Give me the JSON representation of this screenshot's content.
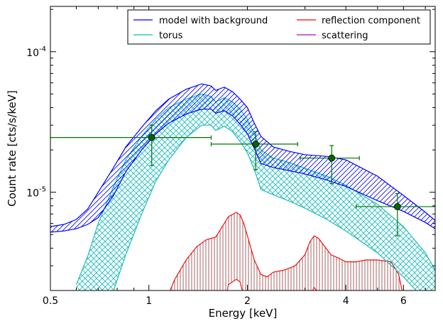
{
  "chart_data": {
    "type": "line",
    "xlabel": "Energy [keV]",
    "ylabel": "Count rate [cts/s/keV]",
    "xscale": "log",
    "yscale": "log",
    "xlim": [
      0.5,
      7.5
    ],
    "ylim": [
      2e-06,
      0.00021
    ],
    "xticks": [
      {
        "value": 0.5,
        "label": "0.5"
      },
      {
        "value": 1,
        "label": "1"
      },
      {
        "value": 2,
        "label": "2"
      },
      {
        "value": 4,
        "label": "4"
      },
      {
        "value": 6,
        "label": "6"
      }
    ],
    "yticks": [
      {
        "value": 1e-05,
        "base": "10",
        "exp": "-5"
      },
      {
        "value": 0.0001,
        "base": "10",
        "exp": "-4"
      }
    ],
    "legend": {
      "placement": "top-right",
      "entries": [
        {
          "label": "model with background",
          "color": "#0000ff"
        },
        {
          "label": "reflection component",
          "color": "#ff0000"
        },
        {
          "label": "torus",
          "color": "#00bfbf"
        },
        {
          "label": "scattering",
          "color": "#bf00bf"
        }
      ]
    },
    "colors": {
      "model": "#0000ff",
      "torus": "#1fbcbc",
      "reflection": "#ee1111",
      "reflection_fill": "#a05050",
      "data": "#007700",
      "data_marker": "#006600"
    },
    "series": [
      {
        "name": "model with background",
        "x": [
          0.5,
          0.55,
          0.6,
          0.65,
          0.7,
          0.78,
          0.85,
          0.95,
          1.05,
          1.15,
          1.3,
          1.45,
          1.55,
          1.6,
          1.7,
          1.8,
          1.9,
          2.0,
          2.1,
          2.2,
          2.4,
          2.7,
          3.0,
          3.5,
          4.0,
          5.0,
          6.0,
          7.0,
          7.5
        ],
        "upper": [
          5.7e-06,
          5.9e-06,
          6.4e-06,
          7.6e-06,
          1e-05,
          1.5e-05,
          2.1e-05,
          2.9e-05,
          3.8e-05,
          4.6e-05,
          5.4e-05,
          5.9e-05,
          5.7e-05,
          5.3e-05,
          5.6e-05,
          5.2e-05,
          4.6e-05,
          4e-05,
          3.1e-05,
          2.5e-05,
          2.1e-05,
          1.95e-05,
          1.85e-05,
          1.8e-05,
          1.7e-05,
          1.3e-05,
          9.5e-06,
          7.2e-06,
          6.3e-06
        ],
        "lower": [
          5.2e-06,
          5.3e-06,
          5.5e-06,
          5.9e-06,
          6.6e-06,
          9.5e-06,
          1.4e-05,
          2e-05,
          2.6e-05,
          3.1e-05,
          3.6e-05,
          3.9e-05,
          3.9e-05,
          3.65e-05,
          3.8e-05,
          3.5e-05,
          3.05e-05,
          2.6e-05,
          2.05e-05,
          1.6e-05,
          1.5e-05,
          1.42e-05,
          1.35e-05,
          1.22e-05,
          1.1e-05,
          8.7e-06,
          7.3e-06,
          6.1e-06,
          5.5e-06
        ]
      },
      {
        "name": "torus",
        "x": [
          0.6,
          0.65,
          0.7,
          0.78,
          0.85,
          0.95,
          1.05,
          1.15,
          1.3,
          1.45,
          1.55,
          1.6,
          1.7,
          1.8,
          1.9,
          2.0,
          2.1,
          2.2,
          2.4,
          2.7,
          3.0,
          3.5,
          4.0,
          5.0,
          6.0,
          7.0,
          7.5
        ],
        "upper": [
          2.2e-06,
          3.5e-06,
          6e-06,
          1.1e-05,
          1.7e-05,
          2.5e-05,
          3.3e-05,
          4e-05,
          4.6e-05,
          5e-05,
          4.8e-05,
          4.4e-05,
          4.7e-05,
          4.4e-05,
          3.9e-05,
          3.3e-05,
          2.6e-05,
          2e-05,
          1.75e-05,
          1.62e-05,
          1.48e-05,
          1.3e-05,
          1.12e-05,
          8.2e-06,
          5.7e-06,
          3.7e-06,
          2.8e-06
        ],
        "lower": [
          1.5e-06,
          1.6e-06,
          1.7e-06,
          2e-06,
          3.6e-06,
          7e-06,
          1.2e-05,
          1.7e-05,
          2.45e-05,
          3e-05,
          3e-05,
          2.75e-05,
          2.95e-05,
          2.7e-05,
          2.3e-05,
          1.9e-05,
          1.45e-05,
          1.05e-05,
          9.6e-06,
          8.6e-06,
          7.7e-06,
          6.4e-06,
          5.3e-06,
          3.7e-06,
          2.5e-06,
          1.7e-06,
          1.5e-06
        ]
      },
      {
        "name": "reflection component",
        "x": [
          1.05,
          1.15,
          1.2,
          1.3,
          1.4,
          1.5,
          1.6,
          1.7,
          1.75,
          1.85,
          1.9,
          1.95,
          2.0,
          2.1,
          2.2,
          2.3,
          2.4,
          2.6,
          2.8,
          3.0,
          3.1,
          3.2,
          3.3,
          3.45,
          3.6,
          3.8,
          4.0,
          4.3,
          4.6,
          5.0,
          5.5,
          5.8,
          6.0
        ],
        "upper": [
          1.2e-06,
          1.9e-06,
          2.4e-06,
          3.3e-06,
          4.1e-06,
          4.6e-06,
          4.8e-06,
          6e-06,
          6.7e-06,
          7.2e-06,
          6.9e-06,
          6e-06,
          4.9e-06,
          3.3e-06,
          2.6e-06,
          2.5e-06,
          2.7e-06,
          2.8e-06,
          3e-06,
          3.6e-06,
          4.4e-06,
          4.9e-06,
          4.7e-06,
          4.1e-06,
          3.6e-06,
          3.4e-06,
          3.2e-06,
          3.2e-06,
          3.3e-06,
          3.3e-06,
          3.2e-06,
          2.6e-06,
          1.8e-06
        ],
        "lower": [
          9e-07,
          9e-07,
          9e-07,
          9e-07,
          9.5e-07,
          1e-06,
          1.1e-06,
          1.5e-06,
          2.2e-06,
          2.4e-06,
          2.3e-06,
          1.8e-06,
          1.3e-06,
          1e-06,
          9e-07,
          9e-07,
          9e-07,
          9e-07,
          9.5e-07,
          1.2e-06,
          1.8e-06,
          2.1e-06,
          1.9e-06,
          1.4e-06,
          1.1e-06,
          1e-06,
          9.5e-07,
          9.5e-07,
          9.5e-07,
          9.5e-07,
          9.5e-07,
          9e-07,
          9e-07
        ]
      }
    ],
    "data_points": [
      {
        "x": 1.02,
        "y": 2.45e-05,
        "xerr": [
          0.5,
          1.55
        ],
        "yerr": [
          1.55e-05,
          3e-05
        ]
      },
      {
        "x": 2.12,
        "y": 2.2e-05,
        "xerr": [
          1.55,
          2.85
        ],
        "yerr": [
          1.45e-05,
          2.7e-05
        ]
      },
      {
        "x": 3.62,
        "y": 1.75e-05,
        "xerr": [
          2.9,
          4.4
        ],
        "yerr": [
          1.15e-05,
          2.15e-05
        ]
      },
      {
        "x": 5.75,
        "y": 7.9e-06,
        "xerr": [
          4.3,
          7.5
        ],
        "yerr": [
          4.9e-06,
          9.8e-06
        ]
      }
    ]
  }
}
